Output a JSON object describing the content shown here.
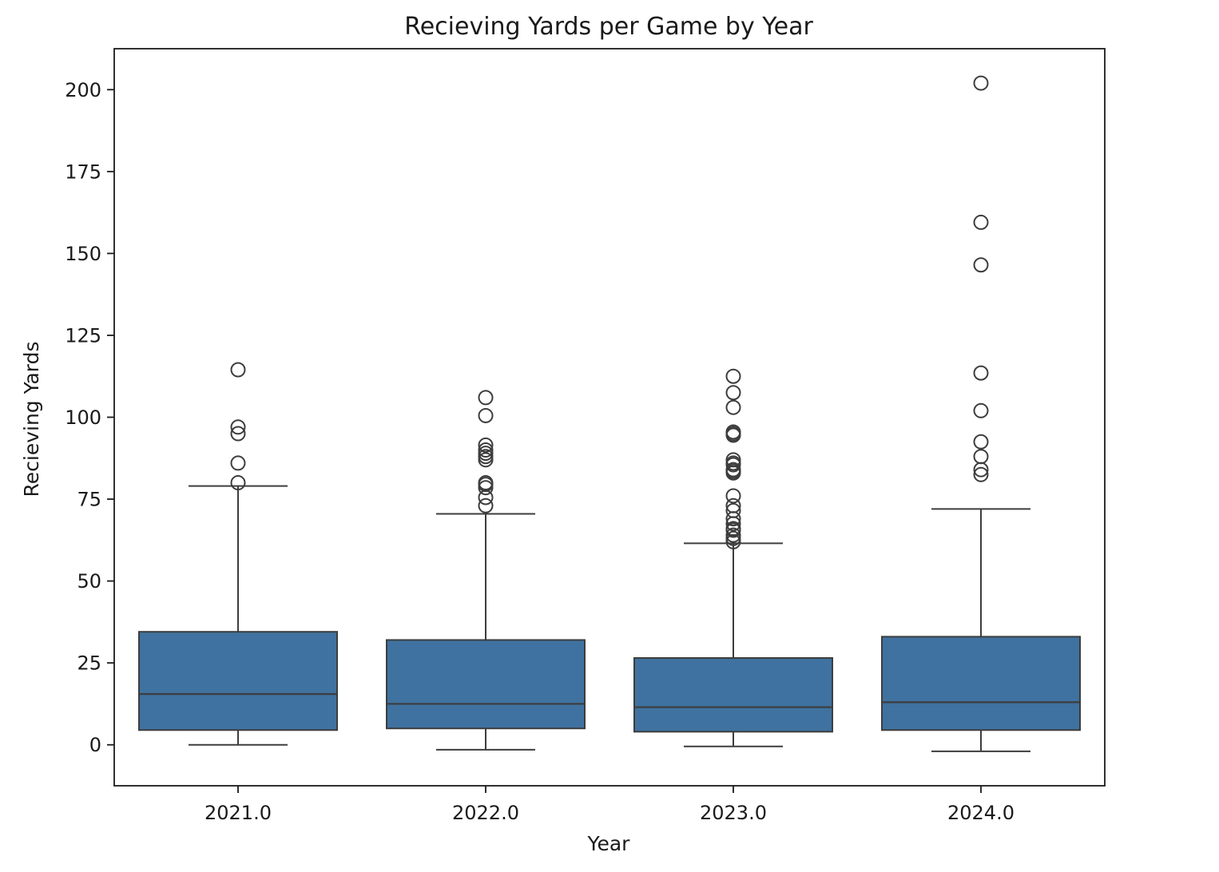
{
  "chart_data": {
    "type": "box",
    "title": "Recieving Yards per Game by Year",
    "xlabel": "Year",
    "ylabel": "Recieving Yards",
    "ylim": [
      -12.5,
      212.5
    ],
    "yticks": [
      0,
      25,
      50,
      75,
      100,
      125,
      150,
      175,
      200
    ],
    "ytick_labels": [
      "0",
      "25",
      "50",
      "75",
      "100",
      "125",
      "150",
      "175",
      "200"
    ],
    "grid": false,
    "colors": {
      "box": "#3f72a0",
      "line": "#3d3d3d"
    },
    "categories": [
      "2021.0",
      "2022.0",
      "2023.0",
      "2024.0"
    ],
    "boxes": [
      {
        "category": "2021.0",
        "whisker_low": 0,
        "q1": 4.5,
        "median": 15.5,
        "q3": 34.5,
        "whisker_high": 79,
        "outliers": [
          114.5,
          97,
          95,
          86,
          80
        ]
      },
      {
        "category": "2022.0",
        "whisker_low": -1.5,
        "q1": 5,
        "median": 12.5,
        "q3": 32,
        "whisker_high": 70.5,
        "outliers": [
          106,
          100.5,
          91.5,
          90,
          89,
          88,
          87,
          80,
          79.5,
          78.5,
          75.5,
          73
        ]
      },
      {
        "category": "2023.0",
        "whisker_low": -0.5,
        "q1": 4,
        "median": 11.5,
        "q3": 26.5,
        "whisker_high": 61.5,
        "outliers": [
          112.5,
          107.5,
          103,
          95.5,
          95,
          94.5,
          87,
          86,
          85.5,
          84,
          83.5,
          83,
          76,
          73,
          71.5,
          69,
          67.5,
          66,
          65.5,
          64,
          63,
          62
        ]
      },
      {
        "category": "2024.0",
        "whisker_low": -2,
        "q1": 4.5,
        "median": 13,
        "q3": 33,
        "whisker_high": 72,
        "outliers": [
          202,
          159.5,
          146.5,
          113.5,
          102,
          92.5,
          88,
          84,
          82.5
        ]
      }
    ]
  }
}
